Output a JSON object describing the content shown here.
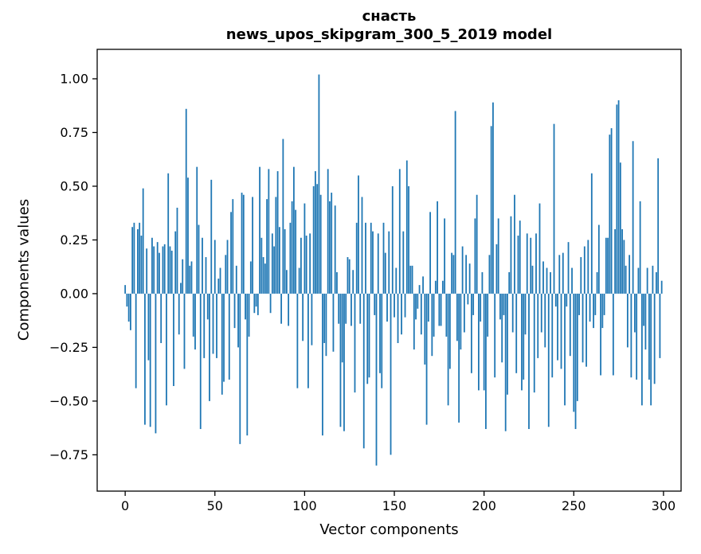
{
  "window": {
    "title_line1": "снасть",
    "title_line2": "news_upos_skipgram_300_5_2019 model"
  },
  "chart_data": {
    "type": "bar",
    "title": "снасть",
    "subtitle": "news_upos_skipgram_300_5_2019 model",
    "xlabel": "Vector components",
    "ylabel": "Components values",
    "bar_color": "#1f77b4",
    "spine_color": "#000000",
    "background": "#ffffff",
    "grid": false,
    "legend": "none",
    "n_components": 300,
    "x_ticks": [
      0,
      50,
      100,
      150,
      200,
      250,
      300
    ],
    "y_ticks": [
      1.0,
      0.75,
      0.5,
      0.25,
      0.0,
      -0.25,
      -0.5,
      -0.75
    ],
    "xlim": [
      -15.6,
      309.8
    ],
    "ylim": [
      -0.919,
      1.137
    ],
    "values": [
      0.04,
      -0.06,
      -0.13,
      -0.17,
      0.31,
      0.33,
      -0.44,
      0.3,
      0.33,
      0.27,
      0.49,
      -0.61,
      0.21,
      -0.31,
      -0.62,
      0.26,
      0.22,
      -0.65,
      0.24,
      0.19,
      -0.23,
      0.22,
      0.23,
      -0.52,
      0.56,
      0.22,
      0.2,
      -0.43,
      0.29,
      0.4,
      -0.19,
      0.05,
      0.16,
      -0.35,
      0.86,
      0.54,
      0.13,
      0.15,
      -0.2,
      -0.26,
      0.59,
      0.32,
      -0.63,
      0.26,
      -0.3,
      0.17,
      -0.12,
      -0.5,
      0.53,
      -0.28,
      0.25,
      -0.3,
      0.07,
      0.12,
      -0.47,
      -0.41,
      0.18,
      0.25,
      -0.4,
      0.38,
      0.44,
      -0.16,
      0.13,
      -0.25,
      -0.7,
      0.47,
      0.46,
      -0.12,
      -0.66,
      -0.2,
      0.15,
      0.45,
      -0.09,
      -0.06,
      -0.1,
      0.59,
      0.26,
      0.17,
      0.14,
      0.44,
      0.58,
      -0.09,
      0.28,
      0.22,
      0.45,
      0.57,
      0.31,
      -0.14,
      0.72,
      0.3,
      0.11,
      -0.15,
      0.33,
      0.43,
      0.59,
      0.39,
      -0.44,
      0.12,
      0.26,
      -0.22,
      0.42,
      0.27,
      -0.44,
      0.28,
      -0.24,
      0.5,
      0.57,
      0.51,
      1.02,
      0.46,
      -0.66,
      -0.23,
      -0.29,
      0.58,
      0.43,
      0.47,
      -0.27,
      0.41,
      0.1,
      -0.14,
      -0.62,
      -0.32,
      -0.64,
      -0.14,
      0.17,
      0.16,
      -0.15,
      0.11,
      -0.46,
      0.33,
      0.55,
      -0.14,
      0.45,
      -0.72,
      0.33,
      -0.42,
      -0.39,
      0.33,
      0.29,
      -0.1,
      -0.8,
      0.28,
      -0.37,
      -0.44,
      0.33,
      0.19,
      -0.13,
      0.29,
      -0.75,
      0.5,
      -0.11,
      0.12,
      -0.23,
      0.58,
      -0.19,
      0.29,
      -0.11,
      0.62,
      0.5,
      0.13,
      0.13,
      -0.26,
      -0.12,
      -0.07,
      0.04,
      -0.19,
      0.08,
      -0.33,
      -0.61,
      -0.13,
      0.38,
      -0.29,
      -0.2,
      0.06,
      0.43,
      -0.15,
      -0.15,
      0.06,
      0.35,
      -0.2,
      -0.52,
      -0.35,
      0.19,
      0.18,
      0.85,
      -0.22,
      -0.6,
      -0.26,
      0.22,
      -0.18,
      0.18,
      -0.05,
      0.14,
      -0.37,
      -0.1,
      0.35,
      0.46,
      -0.45,
      -0.13,
      0.1,
      -0.45,
      -0.63,
      -0.2,
      0.18,
      0.78,
      0.89,
      -0.39,
      0.23,
      0.35,
      -0.12,
      -0.32,
      -0.1,
      -0.64,
      -0.47,
      0.1,
      0.36,
      -0.18,
      0.46,
      -0.37,
      0.27,
      0.34,
      -0.45,
      -0.4,
      -0.19,
      0.28,
      -0.63,
      0.26,
      0.13,
      -0.46,
      0.28,
      -0.3,
      0.42,
      -0.18,
      0.15,
      -0.25,
      0.12,
      -0.62,
      0.1,
      -0.39,
      0.79,
      -0.06,
      -0.31,
      0.18,
      -0.35,
      0.19,
      -0.52,
      -0.06,
      0.24,
      -0.29,
      0.12,
      -0.55,
      -0.63,
      -0.5,
      -0.1,
      0.17,
      -0.32,
      0.22,
      -0.34,
      0.25,
      -0.13,
      0.56,
      -0.16,
      -0.1,
      0.1,
      0.32,
      -0.38,
      -0.16,
      -0.1,
      0.26,
      0.26,
      0.74,
      0.77,
      -0.38,
      0.3,
      0.88,
      0.9,
      0.61,
      0.3,
      0.25,
      0.13,
      -0.25,
      0.18,
      -0.39,
      0.71,
      -0.18,
      -0.4,
      0.12,
      0.43,
      -0.52,
      -0.15,
      -0.26,
      0.12,
      -0.4,
      -0.52,
      0.13,
      -0.42,
      0.1,
      0.63,
      -0.3,
      0.06
    ]
  }
}
